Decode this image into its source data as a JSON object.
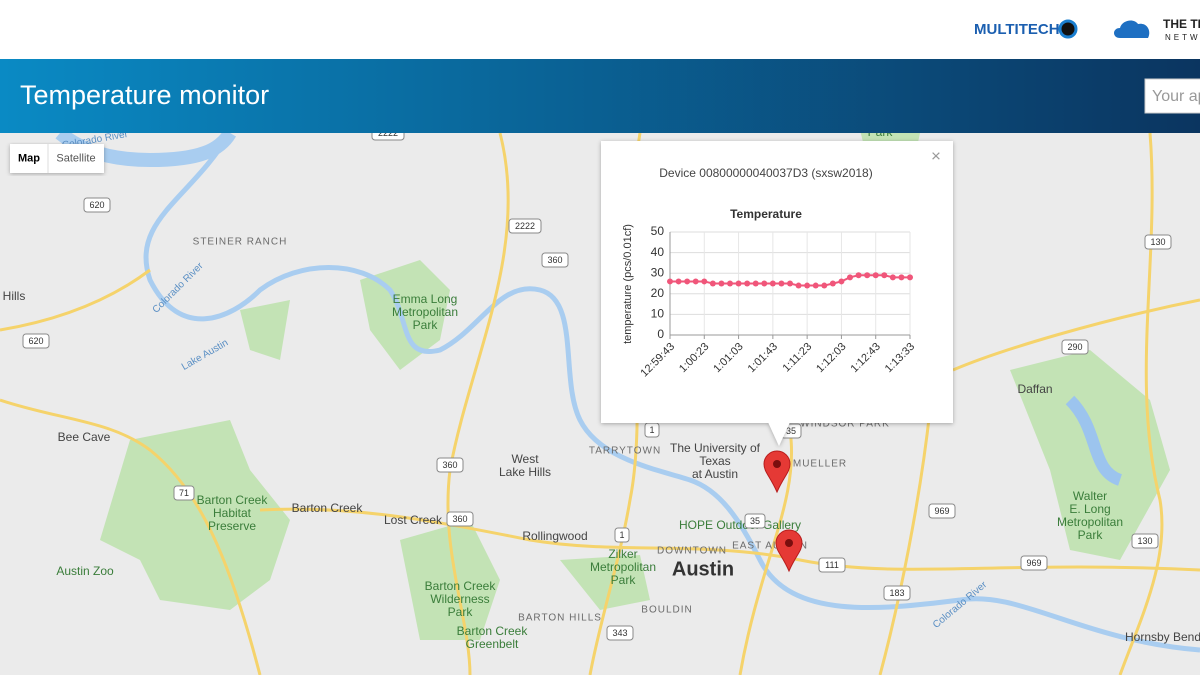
{
  "header": {
    "brand_left": "MULTITECH",
    "brand_right_top": "THE TH",
    "brand_right_bottom": "NETW",
    "title": "Temperature monitor",
    "search_placeholder": "Your ap"
  },
  "map_controls": {
    "map": "Map",
    "satellite": "Satellite"
  },
  "map_labels": [
    [
      "Austin"
    ],
    [
      "West",
      "Lake Hills"
    ],
    [
      "Bee Cave"
    ],
    [
      "Barton Creek"
    ],
    [
      "Lost Creek"
    ],
    [
      "Rollingwood"
    ],
    [
      "STEINER RANCH"
    ],
    [
      "Emma Long",
      "Metropolitan",
      "Park"
    ],
    [
      "Lake Austin"
    ],
    [
      "Colorado River"
    ],
    [
      "The University of",
      "Texas",
      "at Austin"
    ],
    [
      "MUELLER"
    ],
    [
      "Daffan"
    ],
    [
      "Walter",
      "E. Long",
      "Metropolitan",
      "Park"
    ],
    [
      "Austin Zoo"
    ],
    [
      "Barton Creek",
      "Habitat",
      "Preserve"
    ],
    [
      "Zilker",
      "Metropolitan",
      "Park"
    ],
    [
      "HOPE Outdoor Gallery"
    ],
    [
      "DOWNTOWN"
    ],
    [
      "EAST AUSTIN"
    ],
    [
      "BOULDIN"
    ],
    [
      "BARTON HILLS"
    ],
    [
      "Barton Creek",
      "Wilderness",
      "Park"
    ],
    [
      "Barton Creek",
      "Greenbelt"
    ],
    [
      "Hornsby Bend"
    ],
    [
      "TARRYTOWN"
    ],
    [
      "WINDSOR PARK"
    ],
    [
      "Hills"
    ],
    [
      "Colorado River"
    ],
    [
      "Park"
    ],
    [
      "Colorado River"
    ]
  ],
  "road_shields": [
    "620",
    "620",
    "2222",
    "2222",
    "360",
    "360",
    "360",
    "1",
    "1",
    "71",
    "130",
    "290",
    "969",
    "969",
    "183",
    "111",
    "343",
    "130",
    "35",
    "35"
  ],
  "popup": {
    "title": "Device 00800000040037D3 (sxsw2018)",
    "close": "×"
  },
  "chart_data": {
    "type": "line",
    "title": "Temperature",
    "y_label": "temperature (pcs/0.01cf)",
    "categories": [
      "12:59:43",
      null,
      null,
      null,
      "1:00:23",
      null,
      null,
      null,
      "1:01:03",
      null,
      null,
      null,
      "1:01:43",
      null,
      null,
      null,
      "1:11:23",
      null,
      null,
      null,
      "1:12:03",
      null,
      null,
      null,
      "1:12:43",
      null,
      null,
      null,
      "1:13:33"
    ],
    "series": [
      {
        "name": "Temperature",
        "color": "#f0567a",
        "values": [
          26,
          26,
          26,
          26,
          26,
          25,
          25,
          25,
          25,
          25,
          25,
          25,
          25,
          25,
          25,
          24,
          24,
          24,
          24,
          25,
          26,
          28,
          29,
          29,
          29,
          29,
          28,
          28,
          28
        ]
      }
    ],
    "ylim": [
      0,
      50
    ],
    "yticks": [
      0,
      10,
      20,
      30,
      40,
      50
    ],
    "grid": true
  }
}
